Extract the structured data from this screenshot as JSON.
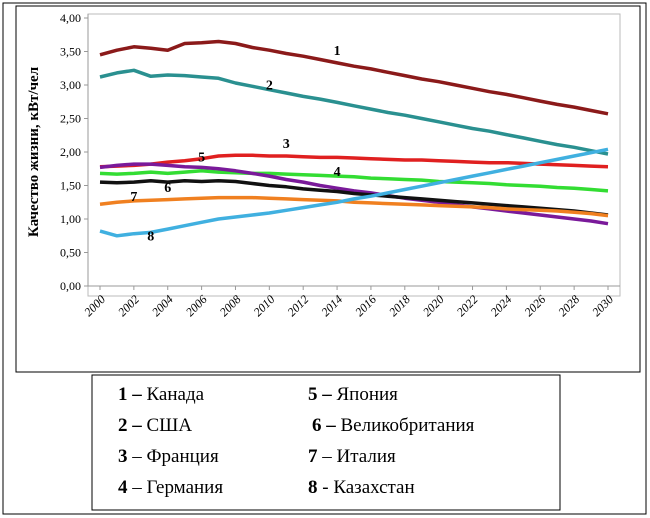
{
  "chart_data": {
    "type": "line",
    "y_label": "Качество жизни, кВт/чел",
    "x": [
      2000,
      2001,
      2002,
      2003,
      2004,
      2005,
      2006,
      2007,
      2008,
      2009,
      2010,
      2011,
      2012,
      2013,
      2014,
      2015,
      2016,
      2017,
      2018,
      2019,
      2020,
      2021,
      2022,
      2023,
      2024,
      2025,
      2026,
      2027,
      2028,
      2029,
      2030
    ],
    "xlim": [
      2000,
      2030
    ],
    "xticks": [
      2000,
      2002,
      2004,
      2006,
      2008,
      2010,
      2012,
      2014,
      2016,
      2018,
      2020,
      2022,
      2024,
      2026,
      2028,
      2030
    ],
    "ylim": [
      0,
      4
    ],
    "yticks": [
      {
        "value": 0,
        "label": "0,00"
      },
      {
        "value": 0.5,
        "label": "0,50"
      },
      {
        "value": 1,
        "label": "1,00"
      },
      {
        "value": 1.5,
        "label": "1,50"
      },
      {
        "value": 2,
        "label": "2,00"
      },
      {
        "value": 2.5,
        "label": "2,50"
      },
      {
        "value": 3,
        "label": "3,00"
      },
      {
        "value": 3.5,
        "label": "3,50"
      },
      {
        "value": 4,
        "label": "4,00"
      }
    ],
    "grid": false,
    "series": [
      {
        "label": "1",
        "sep": "–",
        "name": "Канада",
        "color": "#8b1a1a",
        "values": [
          3.45,
          3.52,
          3.57,
          3.55,
          3.52,
          3.62,
          3.63,
          3.65,
          3.62,
          3.56,
          3.52,
          3.47,
          3.43,
          3.38,
          3.33,
          3.28,
          3.24,
          3.19,
          3.14,
          3.09,
          3.05,
          3.0,
          2.95,
          2.9,
          2.86,
          2.81,
          2.76,
          2.71,
          2.67,
          2.62,
          2.57
        ]
      },
      {
        "label": "2",
        "sep": "–",
        "name": "США",
        "color": "#2a9090",
        "values": [
          3.12,
          3.18,
          3.22,
          3.13,
          3.15,
          3.14,
          3.12,
          3.1,
          3.03,
          2.98,
          2.93,
          2.88,
          2.83,
          2.79,
          2.74,
          2.69,
          2.64,
          2.59,
          2.55,
          2.5,
          2.45,
          2.4,
          2.35,
          2.31,
          2.26,
          2.21,
          2.16,
          2.11,
          2.07,
          2.02,
          1.97
        ]
      },
      {
        "label": "3",
        "sep": "–",
        "name": "Франция",
        "color": "#e02020",
        "values": [
          1.78,
          1.79,
          1.8,
          1.82,
          1.85,
          1.87,
          1.9,
          1.94,
          1.95,
          1.95,
          1.94,
          1.94,
          1.93,
          1.92,
          1.92,
          1.91,
          1.9,
          1.89,
          1.88,
          1.88,
          1.87,
          1.86,
          1.85,
          1.84,
          1.84,
          1.83,
          1.82,
          1.81,
          1.8,
          1.79,
          1.78
        ]
      },
      {
        "label": "4",
        "sep": "–",
        "name": "Германия",
        "color": "#33dd33",
        "values": [
          1.68,
          1.67,
          1.68,
          1.7,
          1.68,
          1.7,
          1.72,
          1.7,
          1.69,
          1.68,
          1.68,
          1.67,
          1.66,
          1.65,
          1.64,
          1.63,
          1.61,
          1.6,
          1.59,
          1.58,
          1.56,
          1.55,
          1.54,
          1.53,
          1.51,
          1.5,
          1.49,
          1.47,
          1.46,
          1.44,
          1.42
        ]
      },
      {
        "label": "5",
        "sep": "–",
        "name": "Япония",
        "color": "#7a1a9a",
        "values": [
          1.77,
          1.8,
          1.82,
          1.82,
          1.8,
          1.78,
          1.77,
          1.75,
          1.72,
          1.68,
          1.64,
          1.59,
          1.55,
          1.5,
          1.46,
          1.42,
          1.39,
          1.35,
          1.31,
          1.28,
          1.25,
          1.21,
          1.18,
          1.15,
          1.12,
          1.09,
          1.06,
          1.03,
          1.0,
          0.97,
          0.93
        ]
      },
      {
        "label": "6",
        "sep": "–",
        "name": "Великобритания",
        "color": "#111111",
        "values": [
          1.55,
          1.54,
          1.55,
          1.57,
          1.55,
          1.57,
          1.56,
          1.57,
          1.56,
          1.53,
          1.5,
          1.48,
          1.45,
          1.43,
          1.41,
          1.38,
          1.36,
          1.34,
          1.32,
          1.3,
          1.28,
          1.26,
          1.24,
          1.22,
          1.2,
          1.18,
          1.16,
          1.14,
          1.12,
          1.09,
          1.06
        ]
      },
      {
        "label": "7",
        "sep": "–",
        "name": "Италия",
        "color": "#f08020",
        "values": [
          1.22,
          1.25,
          1.27,
          1.28,
          1.29,
          1.3,
          1.31,
          1.32,
          1.32,
          1.32,
          1.31,
          1.3,
          1.29,
          1.28,
          1.27,
          1.25,
          1.24,
          1.23,
          1.22,
          1.21,
          1.2,
          1.19,
          1.18,
          1.17,
          1.15,
          1.14,
          1.13,
          1.12,
          1.1,
          1.08,
          1.05
        ]
      },
      {
        "label": "8",
        "sep": "-",
        "name": "Казахстан",
        "color": "#40b0e0",
        "values": [
          0.82,
          0.75,
          0.78,
          0.8,
          0.85,
          0.9,
          0.95,
          1.0,
          1.03,
          1.06,
          1.09,
          1.13,
          1.17,
          1.21,
          1.25,
          1.3,
          1.34,
          1.39,
          1.44,
          1.49,
          1.54,
          1.59,
          1.64,
          1.69,
          1.74,
          1.79,
          1.84,
          1.89,
          1.94,
          1.99,
          2.04
        ]
      }
    ]
  }
}
